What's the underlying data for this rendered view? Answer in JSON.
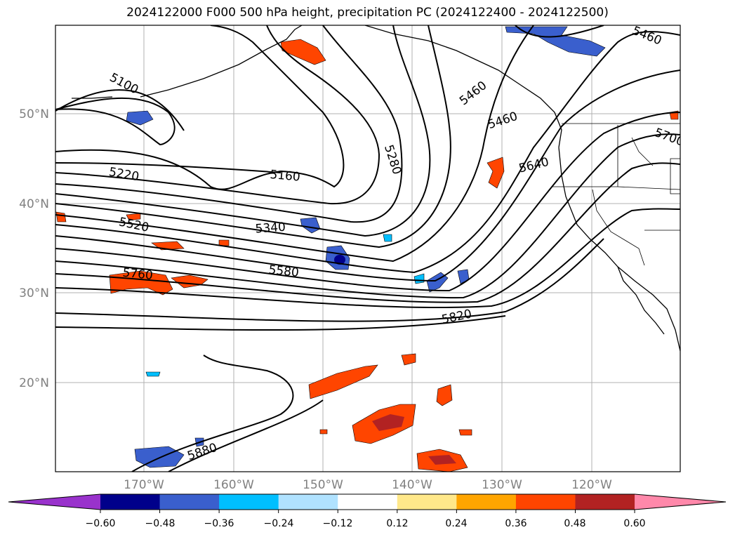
{
  "title": "2024122000 F000 500 hPa height, precipitation PC (2024122400 - 2024122500)",
  "lat_labels": [
    "50°N",
    "40°N",
    "30°N",
    "20°N"
  ],
  "lon_labels": [
    "170°W",
    "160°W",
    "150°W",
    "140°W",
    "130°W",
    "120°W"
  ],
  "contour_labels": [
    "5100",
    "5160",
    "5220",
    "5280",
    "5340",
    "5460",
    "5460",
    "5460",
    "5520",
    "5580",
    "5640",
    "5700",
    "5760",
    "5820",
    "5880"
  ],
  "colorbar": {
    "ticks": [
      "−0.60",
      "−0.48",
      "−0.36",
      "−0.24",
      "−0.12",
      "0.12",
      "0.24",
      "0.36",
      "0.48",
      "0.60"
    ],
    "colors": [
      "#9932cc",
      "#00008b",
      "#3a5fcd",
      "#00bfff",
      "#b0e2ff",
      "#ffffff",
      "#ffe88a",
      "#ffa500",
      "#ff4500",
      "#b22222",
      "#ff88aa"
    ]
  }
}
